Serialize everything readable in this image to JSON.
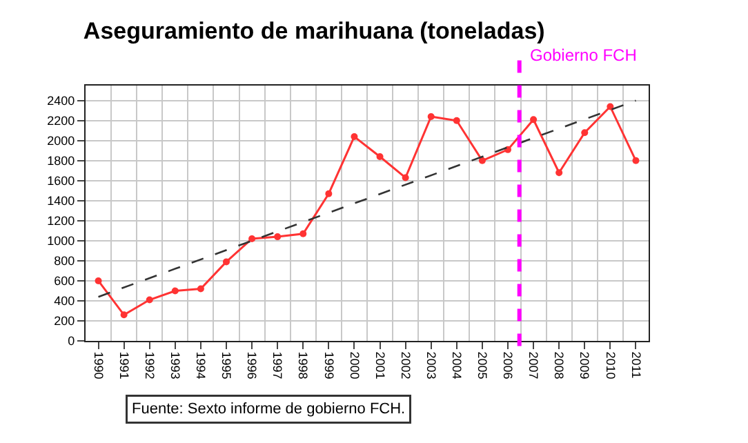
{
  "chart_data": {
    "type": "line",
    "title": "Aseguramiento de marihuana (toneladas)",
    "x": [
      1990,
      1991,
      1992,
      1993,
      1994,
      1995,
      1996,
      1997,
      1998,
      1999,
      2000,
      2001,
      2002,
      2003,
      2004,
      2005,
      2006,
      2007,
      2008,
      2009,
      2010,
      2011
    ],
    "series": [
      {
        "color": "#ff3333",
        "marker": "circle",
        "line_style": "solid",
        "values": [
          600,
          260,
          410,
          500,
          520,
          790,
          1020,
          1040,
          1070,
          1470,
          2040,
          1840,
          1630,
          2240,
          2200,
          1800,
          1910,
          2210,
          1680,
          2080,
          2340,
          1800
        ]
      },
      {
        "type": "line",
        "color": "#333333",
        "marker": "none",
        "line_style": "dashed",
        "x": [
          1990,
          2011
        ],
        "values": [
          440,
          2400
        ]
      }
    ],
    "xlim": [
      1989.5,
      2011.5
    ],
    "xticks": [
      1990,
      1991,
      1992,
      1993,
      1994,
      1995,
      1996,
      1997,
      1998,
      1999,
      2000,
      2001,
      2002,
      2003,
      2004,
      2005,
      2006,
      2007,
      2008,
      2009,
      2010,
      2011
    ],
    "ylim": [
      0,
      2550
    ],
    "yticks": [
      0,
      200,
      400,
      600,
      800,
      1000,
      1200,
      1400,
      1600,
      1800,
      2000,
      2200,
      2400
    ],
    "grid": true,
    "ref_lines": [
      {
        "axis": "x",
        "value": 2006.45,
        "label": "Gobierno FCH",
        "color": "#ff00ff",
        "line_style": "dashed"
      }
    ],
    "annotations": [
      "Fuente: Sexto informe de gobierno FCH."
    ]
  }
}
